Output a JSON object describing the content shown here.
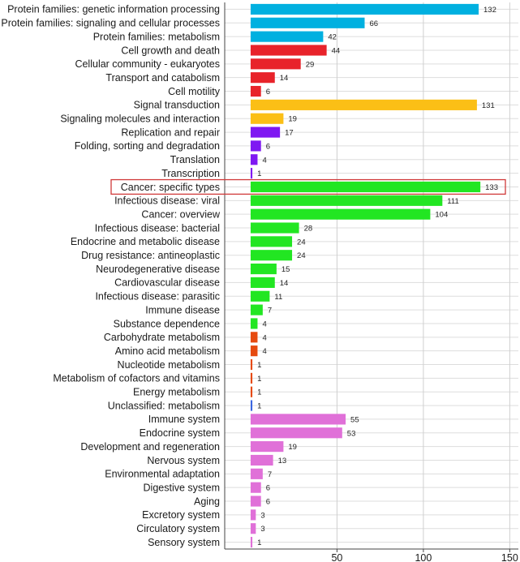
{
  "chart_data": {
    "type": "bar",
    "orientation": "horizontal",
    "title": "",
    "xlabel": "",
    "ylabel": "",
    "xlim": [
      -15,
      155
    ],
    "xticks": [
      50,
      100,
      150
    ],
    "grid": true,
    "highlight_category": "Cancer: specific types",
    "categories": [
      "Protein families: genetic information processing",
      "Protein families: signaling and cellular processes",
      "Protein families: metabolism",
      "Cell growth and death",
      "Cellular community - eukaryotes",
      "Transport and catabolism",
      "Cell motility",
      "Signal transduction",
      "Signaling molecules and interaction",
      "Replication and repair",
      "Folding, sorting and degradation",
      "Translation",
      "Transcription",
      "Cancer: specific types",
      "Infectious disease: viral",
      "Cancer: overview",
      "Infectious disease: bacterial",
      "Endocrine and metabolic disease",
      "Drug resistance: antineoplastic",
      "Neurodegenerative disease",
      "Cardiovascular disease",
      "Infectious disease: parasitic",
      "Immune disease",
      "Substance dependence",
      "Carbohydrate metabolism",
      "Amino acid metabolism",
      "Nucleotide metabolism",
      "Metabolism of cofactors and vitamins",
      "Energy metabolism",
      "Unclassified: metabolism",
      "Immune system",
      "Endocrine system",
      "Development and regeneration",
      "Nervous system",
      "Environmental adaptation",
      "Digestive system",
      "Aging",
      "Excretory system",
      "Circulatory system",
      "Sensory system"
    ],
    "values": [
      132,
      66,
      42,
      44,
      29,
      14,
      6,
      131,
      19,
      17,
      6,
      4,
      1,
      133,
      111,
      104,
      28,
      24,
      24,
      15,
      14,
      11,
      7,
      4,
      4,
      4,
      1,
      1,
      1,
      1,
      55,
      53,
      19,
      13,
      7,
      6,
      6,
      3,
      3,
      1
    ],
    "value_labels": [
      "132",
      "66",
      "42",
      "44",
      "29",
      "14",
      "6",
      "131",
      "19",
      "17",
      "6",
      "4",
      "1",
      "133",
      "111",
      "104",
      "28",
      "24",
      "24",
      "15",
      "14",
      "11",
      "7",
      "4",
      "4",
      "4",
      "1",
      "1",
      "1",
      "1",
      "55",
      "53",
      "19",
      "13",
      "7",
      "6",
      "6",
      "3",
      "3",
      "1"
    ],
    "tick_labels": [
      "50",
      "100",
      "150"
    ],
    "groups": [
      "genetic",
      "genetic",
      "genetic",
      "cellular",
      "cellular",
      "cellular",
      "cellular",
      "environmental",
      "environmental",
      "genetic_info",
      "genetic_info",
      "genetic_info",
      "genetic_info",
      "disease",
      "disease",
      "disease",
      "disease",
      "disease",
      "disease",
      "disease",
      "disease",
      "disease",
      "disease",
      "disease",
      "metabolism",
      "metabolism",
      "metabolism",
      "metabolism",
      "metabolism",
      "unclassified",
      "organismal",
      "organismal",
      "organismal",
      "organismal",
      "organismal",
      "organismal",
      "organismal",
      "organismal",
      "organismal",
      "organismal"
    ],
    "group_colors": {
      "genetic": "#00b0e0",
      "cellular": "#e8232a",
      "environmental": "#fbbf16",
      "genetic_info": "#7f18f2",
      "disease": "#22e622",
      "metabolism": "#e64a0f",
      "unclassified": "#3b66e0",
      "organismal": "#e070d8"
    },
    "highlight_color": "#d03a3a"
  }
}
